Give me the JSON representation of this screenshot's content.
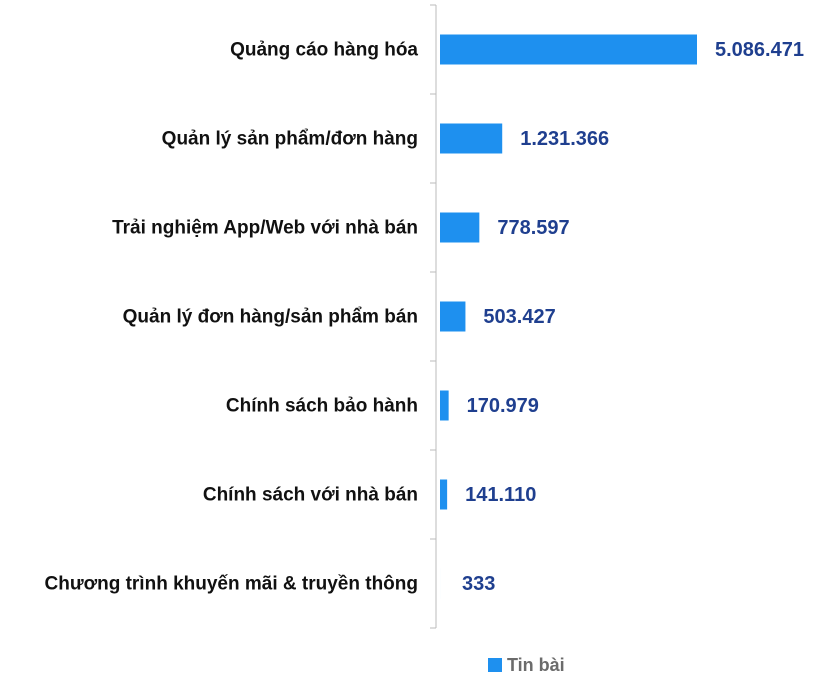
{
  "chart_data": {
    "type": "bar",
    "orientation": "horizontal",
    "categories": [
      "Quảng cáo hàng hóa",
      "Quản lý sản phẩm/đơn hàng",
      "Trải nghiệm App/Web với nhà bán",
      "Quản lý đơn hàng/sản phẩm bán",
      "Chính sách bảo hành",
      "Chính sách với nhà bán",
      "Chương trình khuyến mãi & truyền thông"
    ],
    "series": [
      {
        "name": "Tin bài",
        "color": "#1e90ef",
        "values": [
          5086471,
          1231366,
          778597,
          503427,
          170979,
          141110,
          333
        ],
        "value_labels": [
          "5.086.471",
          "1.231.366",
          "778.597",
          "503.427",
          "170.979",
          "141.110",
          "333"
        ]
      }
    ],
    "legend": "bottom"
  }
}
